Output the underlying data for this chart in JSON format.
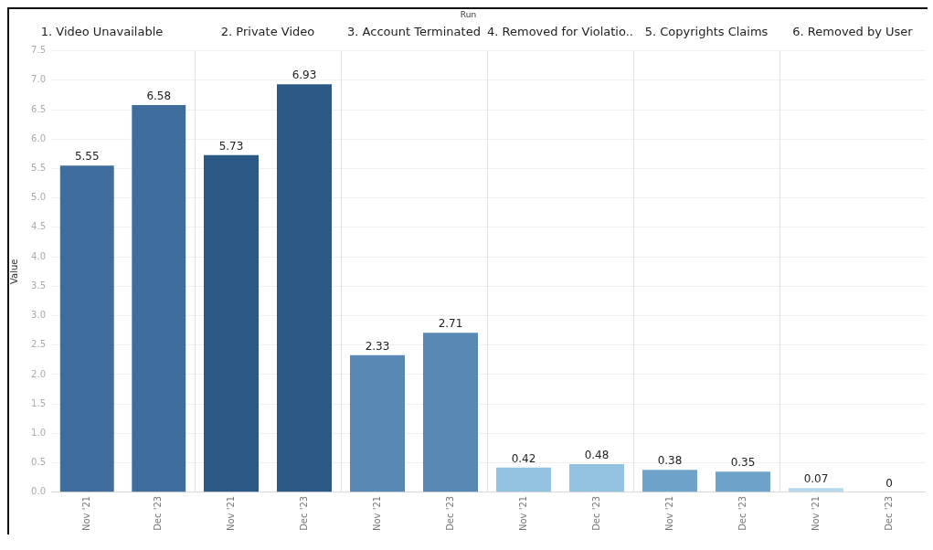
{
  "chart_data": [
    {
      "type": "bar",
      "title": "1. Video Unavailable",
      "ylabel": "Value",
      "annotations": [
        "Run"
      ],
      "categories": [
        "Nov '21",
        "Dec '23"
      ],
      "values": [
        5.55,
        6.58
      ],
      "colors": [
        "#3f6e9c",
        "#3f6e9c"
      ],
      "data_labels": true,
      "ylim": [
        0,
        7.5
      ],
      "yticks": [
        {
          "value": 0,
          "label": "0.0"
        },
        0.5,
        {
          "value": 1,
          "label": "1.0"
        },
        1.5,
        {
          "value": 2,
          "label": "2.0"
        },
        2.5,
        {
          "value": 3,
          "label": "3.0"
        },
        3.5,
        {
          "value": 4,
          "label": "4.0"
        },
        4.5,
        {
          "value": 5,
          "label": "5.0"
        },
        5.5,
        {
          "value": 6,
          "label": "6.0"
        },
        6.5,
        {
          "value": 7,
          "label": "7.0"
        },
        7.5
      ],
      "grid": "y"
    },
    {
      "type": "bar",
      "title": "2. Private Video",
      "categories": [
        "Nov '21",
        "Dec '23"
      ],
      "values": [
        5.73,
        6.93
      ],
      "colors": [
        "#2c5885",
        "#2c5885"
      ],
      "data_labels": true,
      "ylim": [
        0,
        7.5
      ],
      "yticks": [
        {
          "value": 0,
          "label": null
        },
        {
          "value": 0.5,
          "label": null
        },
        {
          "value": 1,
          "label": null
        },
        {
          "value": 1.5,
          "label": null
        },
        {
          "value": 2,
          "label": null
        },
        {
          "value": 2.5,
          "label": null
        },
        {
          "value": 3,
          "label": null
        },
        {
          "value": 3.5,
          "label": null
        },
        {
          "value": 4,
          "label": null
        },
        {
          "value": 4.5,
          "label": null
        },
        {
          "value": 5,
          "label": null
        },
        {
          "value": 5.5,
          "label": null
        },
        {
          "value": 6,
          "label": null
        },
        {
          "value": 6.5,
          "label": null
        },
        {
          "value": 7,
          "label": null
        },
        {
          "value": 7.5,
          "label": null
        }
      ],
      "grid": "y",
      "tick_labels": "x"
    },
    {
      "type": "bar",
      "title": "3. Account Terminated",
      "categories": [
        "Nov '21",
        "Dec '23"
      ],
      "values": [
        2.33,
        2.71
      ],
      "colors": [
        "#5889b5",
        "#5889b5"
      ],
      "data_labels": true,
      "ylim": [
        0,
        7.5
      ],
      "yticks": [
        {
          "value": 0,
          "label": null
        },
        {
          "value": 0.5,
          "label": null
        },
        {
          "value": 1,
          "label": null
        },
        {
          "value": 1.5,
          "label": null
        },
        {
          "value": 2,
          "label": null
        },
        {
          "value": 2.5,
          "label": null
        },
        {
          "value": 3,
          "label": null
        },
        {
          "value": 3.5,
          "label": null
        },
        {
          "value": 4,
          "label": null
        },
        {
          "value": 4.5,
          "label": null
        },
        {
          "value": 5,
          "label": null
        },
        {
          "value": 5.5,
          "label": null
        },
        {
          "value": 6,
          "label": null
        },
        {
          "value": 6.5,
          "label": null
        },
        {
          "value": 7,
          "label": null
        },
        {
          "value": 7.5,
          "label": null
        }
      ],
      "grid": "y",
      "tick_labels": "x"
    },
    {
      "type": "bar",
      "title": "4. Removed for Violatio..",
      "categories": [
        "Nov '21",
        "Dec '23"
      ],
      "values": [
        0.42,
        0.48
      ],
      "colors": [
        "#93c3e1",
        "#93c3e1"
      ],
      "data_labels": true,
      "ylim": [
        0,
        7.5
      ],
      "yticks": [
        {
          "value": 0,
          "label": null
        },
        {
          "value": 0.5,
          "label": null
        },
        {
          "value": 1,
          "label": null
        },
        {
          "value": 1.5,
          "label": null
        },
        {
          "value": 2,
          "label": null
        },
        {
          "value": 2.5,
          "label": null
        },
        {
          "value": 3,
          "label": null
        },
        {
          "value": 3.5,
          "label": null
        },
        {
          "value": 4,
          "label": null
        },
        {
          "value": 4.5,
          "label": null
        },
        {
          "value": 5,
          "label": null
        },
        {
          "value": 5.5,
          "label": null
        },
        {
          "value": 6,
          "label": null
        },
        {
          "value": 6.5,
          "label": null
        },
        {
          "value": 7,
          "label": null
        },
        {
          "value": 7.5,
          "label": null
        }
      ],
      "grid": "y",
      "tick_labels": "x"
    },
    {
      "type": "bar",
      "title": "5. Copyrights Claims",
      "categories": [
        "Nov '21",
        "Dec '23"
      ],
      "values": [
        0.38,
        0.35
      ],
      "colors": [
        "#6fa3ca",
        "#6fa3ca"
      ],
      "data_labels": true,
      "ylim": [
        0,
        7.5
      ],
      "yticks": [
        {
          "value": 0,
          "label": null
        },
        {
          "value": 0.5,
          "label": null
        },
        {
          "value": 1,
          "label": null
        },
        {
          "value": 1.5,
          "label": null
        },
        {
          "value": 2,
          "label": null
        },
        {
          "value": 2.5,
          "label": null
        },
        {
          "value": 3,
          "label": null
        },
        {
          "value": 3.5,
          "label": null
        },
        {
          "value": 4,
          "label": null
        },
        {
          "value": 4.5,
          "label": null
        },
        {
          "value": 5,
          "label": null
        },
        {
          "value": 5.5,
          "label": null
        },
        {
          "value": 6,
          "label": null
        },
        {
          "value": 6.5,
          "label": null
        },
        {
          "value": 7,
          "label": null
        },
        {
          "value": 7.5,
          "label": null
        }
      ],
      "grid": "y",
      "tick_labels": "x"
    },
    {
      "type": "bar",
      "title": "6. Removed by User",
      "categories": [
        "Nov '21",
        "Dec '23"
      ],
      "values": [
        0.07,
        0
      ],
      "colors": [
        "#b6d9ee",
        "#b6d9ee"
      ],
      "data_labels": true,
      "ylim": [
        0,
        7.5
      ],
      "yticks": [
        {
          "value": 0,
          "label": null
        },
        {
          "value": 0.5,
          "label": null
        },
        {
          "value": 1,
          "label": null
        },
        {
          "value": 1.5,
          "label": null
        },
        {
          "value": 2,
          "label": null
        },
        {
          "value": 2.5,
          "label": null
        },
        {
          "value": 3,
          "label": null
        },
        {
          "value": 3.5,
          "label": null
        },
        {
          "value": 4,
          "label": null
        },
        {
          "value": 4.5,
          "label": null
        },
        {
          "value": 5,
          "label": null
        },
        {
          "value": 5.5,
          "label": null
        },
        {
          "value": 6,
          "label": null
        },
        {
          "value": 6.5,
          "label": null
        },
        {
          "value": 7,
          "label": null
        },
        {
          "value": 7.5,
          "label": null
        }
      ],
      "grid": "y",
      "tick_labels": "x"
    }
  ]
}
